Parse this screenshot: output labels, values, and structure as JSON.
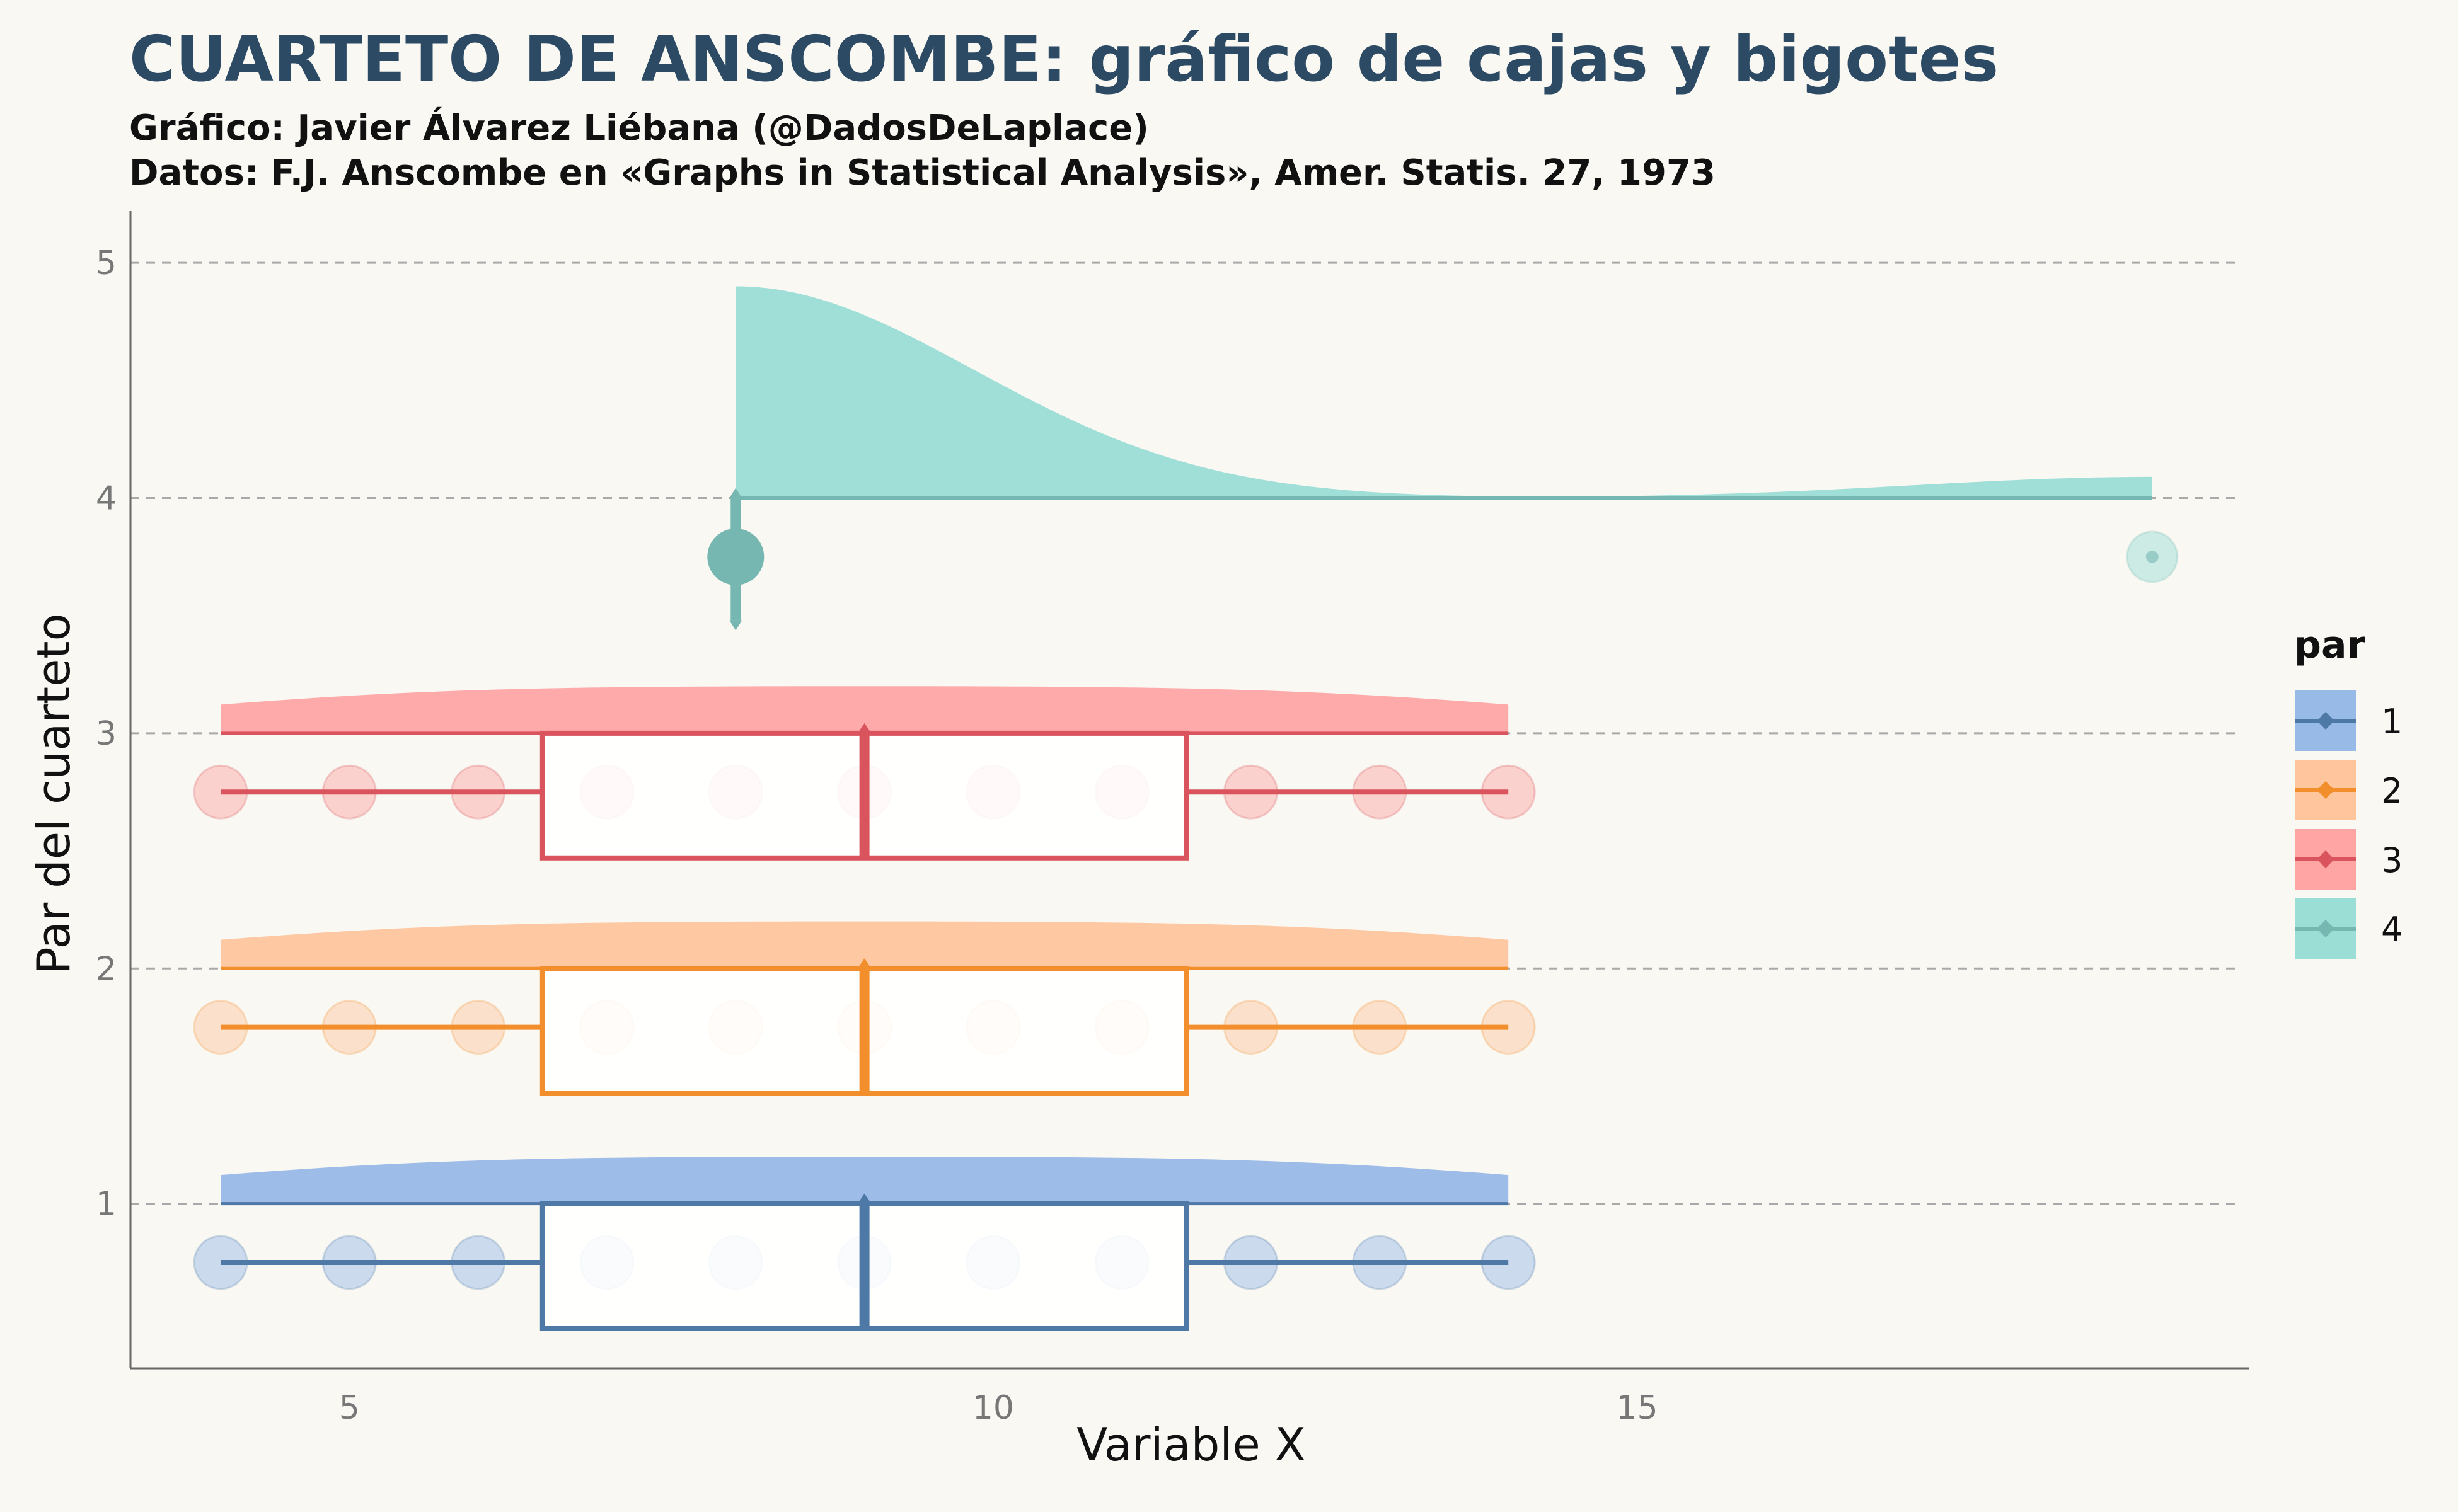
{
  "header": {
    "title": "CUARTETO DE ANSCOMBE: gráfico de cajas y bigotes",
    "subtitle_1": "Gráfico: Javier Álvarez Liébana (@DadosDeLaplace)",
    "subtitle_2": "Datos: F.J. Anscombe en «Graphs in Statistical Analysis», Amer. Statis. 27, 1973"
  },
  "chart_data": {
    "type": "raincloud",
    "xlabel": "Variable X",
    "ylabel": "Par del cuarteto",
    "xlim": [
      3.3,
      19.75
    ],
    "ylim": [
      0.3,
      5.22
    ],
    "x_ticks": [
      5,
      10,
      15
    ],
    "y_ticks": [
      1,
      2,
      3,
      4,
      5
    ],
    "grid": "horizontal dashed",
    "legend": {
      "title": "par",
      "placement": "right"
    },
    "series": [
      {
        "name": "1",
        "color": "#4e79a7",
        "fill": "#8db2e5",
        "points": [
          4,
          5,
          6,
          7,
          8,
          9,
          10,
          11,
          12,
          13,
          14
        ],
        "box": {
          "q1": 6.5,
          "median": 9,
          "q3": 11.5,
          "whisker_low": 4,
          "whisker_high": 14
        }
      },
      {
        "name": "2",
        "color": "#f28e2b",
        "fill": "#ffbf94",
        "points": [
          4,
          5,
          6,
          7,
          8,
          9,
          10,
          11,
          12,
          13,
          14
        ],
        "box": {
          "q1": 6.5,
          "median": 9,
          "q3": 11.5,
          "whisker_low": 4,
          "whisker_high": 14
        }
      },
      {
        "name": "3",
        "color": "#d9545d",
        "fill": "#ff9c9c",
        "points": [
          4,
          5,
          6,
          7,
          8,
          9,
          10,
          11,
          12,
          13,
          14
        ],
        "box": {
          "q1": 6.5,
          "median": 9,
          "q3": 11.5,
          "whisker_low": 4,
          "whisker_high": 14
        }
      },
      {
        "name": "4",
        "color": "#76b7b2",
        "fill": "#8fdad2",
        "points": [
          8,
          8,
          8,
          8,
          8,
          8,
          8,
          8,
          8,
          8,
          19
        ],
        "box": {
          "q1": 8,
          "median": 8,
          "q3": 8,
          "whisker_low": 8,
          "whisker_high": 8
        }
      }
    ]
  }
}
